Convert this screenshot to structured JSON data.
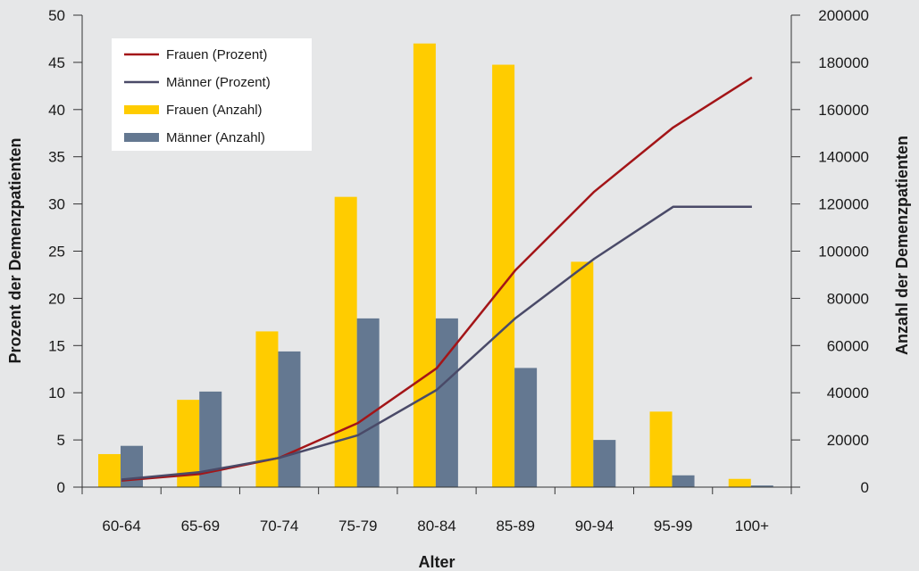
{
  "chart_data": {
    "type": "bar",
    "categories": [
      "60-64",
      "65-69",
      "70-74",
      "75-79",
      "80-84",
      "85-89",
      "90-94",
      "95-99",
      "100+"
    ],
    "xlabel": "Alter",
    "ylabel_left": "Prozent der Demenzpatienten",
    "ylabel_right": "Anzahl der Demenzpatienten",
    "ylim_left": [
      0,
      50
    ],
    "ylim_right": [
      0,
      200000
    ],
    "yticks_left": [
      "0",
      "5",
      "10",
      "15",
      "20",
      "25",
      "30",
      "35",
      "40",
      "45",
      "50"
    ],
    "yticks_right": [
      "0",
      "20000",
      "40000",
      "60000",
      "80000",
      "100000",
      "120000",
      "140000",
      "160000",
      "180000",
      "200000"
    ],
    "grid": false,
    "legend_position": "top-left",
    "bar_series": [
      {
        "name": "Frauen (Anzahl)",
        "color": "#ffcc00",
        "axis": "right",
        "values": [
          14000,
          37000,
          66000,
          123000,
          188000,
          179000,
          95500,
          32000,
          3500
        ]
      },
      {
        "name": "Männer (Anzahl)",
        "color": "#647891",
        "axis": "right",
        "values": [
          17500,
          40500,
          57500,
          71500,
          71500,
          50500,
          20000,
          5000,
          700
        ]
      }
    ],
    "line_series": [
      {
        "name": "Frauen (Prozent)",
        "color": "#a31518",
        "axis": "left",
        "values": [
          0.7,
          1.4,
          3.1,
          6.8,
          12.6,
          23.0,
          31.3,
          38.1,
          43.4
        ]
      },
      {
        "name": "Männer (Prozent)",
        "color": "#4a4a68",
        "axis": "left",
        "values": [
          0.8,
          1.6,
          3.1,
          5.5,
          10.3,
          17.9,
          24.2,
          29.7,
          29.7
        ]
      }
    ],
    "legend": [
      "Frauen (Prozent)",
      "Männer (Prozent)",
      "Frauen (Anzahl)",
      "Männer (Anzahl)"
    ]
  }
}
